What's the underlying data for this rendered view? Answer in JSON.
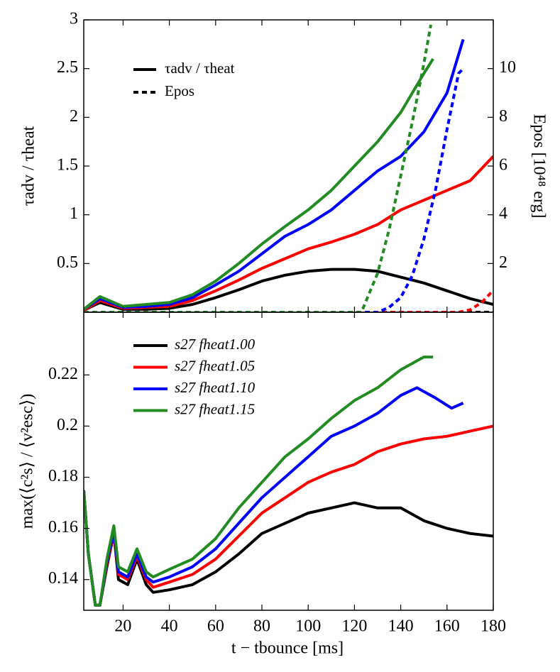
{
  "chart_data": [
    {
      "type": "line",
      "ylabel": "τadv / τheat",
      "y2label": "Epos [10⁴⁸ erg]",
      "xlim": [
        3,
        180
      ],
      "ylim": [
        0,
        3
      ],
      "yticks": [
        0.5,
        1,
        1.5,
        2,
        2.5,
        3
      ],
      "y2lim": [
        0,
        12
      ],
      "y2ticks": [
        2,
        4,
        6,
        8,
        10
      ],
      "legend": [
        {
          "label": "τadv / τheat",
          "dash": "solid"
        },
        {
          "label": "Epos",
          "dash": "dashed"
        }
      ],
      "series": [
        {
          "color": "#000000",
          "dash": "solid",
          "x": [
            3,
            10,
            20,
            30,
            40,
            50,
            60,
            70,
            80,
            90,
            100,
            110,
            120,
            130,
            140,
            150,
            160,
            170,
            180
          ],
          "values": [
            0.02,
            0.1,
            0.03,
            0.03,
            0.04,
            0.08,
            0.15,
            0.23,
            0.32,
            0.38,
            0.42,
            0.44,
            0.44,
            0.42,
            0.36,
            0.3,
            0.22,
            0.14,
            0.08
          ]
        },
        {
          "color": "#ff0000",
          "dash": "solid",
          "x": [
            3,
            10,
            20,
            30,
            40,
            50,
            60,
            70,
            80,
            90,
            100,
            110,
            120,
            130,
            140,
            150,
            160,
            170,
            180
          ],
          "values": [
            0.02,
            0.12,
            0.04,
            0.05,
            0.06,
            0.12,
            0.22,
            0.33,
            0.45,
            0.55,
            0.65,
            0.72,
            0.8,
            0.9,
            1.05,
            1.15,
            1.25,
            1.35,
            1.6
          ]
        },
        {
          "color": "#0000ff",
          "dash": "solid",
          "x": [
            3,
            10,
            20,
            30,
            40,
            50,
            60,
            70,
            80,
            90,
            100,
            110,
            120,
            130,
            140,
            150,
            160,
            167
          ],
          "values": [
            0.03,
            0.14,
            0.05,
            0.06,
            0.08,
            0.15,
            0.28,
            0.42,
            0.6,
            0.78,
            0.9,
            1.05,
            1.25,
            1.45,
            1.6,
            1.85,
            2.25,
            2.8
          ]
        },
        {
          "color": "#228b22",
          "dash": "solid",
          "x": [
            3,
            10,
            20,
            30,
            40,
            50,
            60,
            70,
            80,
            90,
            100,
            110,
            120,
            130,
            140,
            150,
            154
          ],
          "values": [
            0.03,
            0.16,
            0.06,
            0.08,
            0.1,
            0.18,
            0.32,
            0.5,
            0.7,
            0.88,
            1.05,
            1.25,
            1.5,
            1.75,
            2.05,
            2.45,
            2.6
          ]
        },
        {
          "color": "#000000",
          "dash": "dashed",
          "axis": "y2",
          "x": [
            3,
            180
          ],
          "values": [
            0,
            0
          ]
        },
        {
          "color": "#ff0000",
          "dash": "dashed",
          "axis": "y2",
          "x": [
            3,
            165,
            170,
            175,
            180
          ],
          "values": [
            0,
            0,
            0.1,
            0.4,
            0.9
          ]
        },
        {
          "color": "#0000ff",
          "dash": "dashed",
          "axis": "y2",
          "x": [
            3,
            130,
            135,
            140,
            145,
            150,
            155,
            160,
            165,
            167
          ],
          "values": [
            0,
            0,
            0.2,
            0.6,
            1.5,
            3,
            5,
            7.5,
            9.8,
            10
          ]
        },
        {
          "color": "#228b22",
          "dash": "dashed",
          "axis": "y2",
          "x": [
            3,
            123,
            130,
            135,
            140,
            145,
            150,
            153
          ],
          "values": [
            0,
            0,
            1.6,
            3.4,
            5.6,
            7.8,
            10.2,
            11.8
          ]
        }
      ]
    },
    {
      "type": "line",
      "xlabel": "t − tbounce [ms]",
      "ylabel": "max(⟨c²s⟩ / ⟨v²esc⟩)",
      "xlim": [
        3,
        180
      ],
      "xticks": [
        20,
        40,
        60,
        80,
        100,
        120,
        140,
        160,
        180
      ],
      "ylim": [
        0.128,
        0.2445
      ],
      "yticks": [
        0.14,
        0.16,
        0.18,
        0.2,
        0.22
      ],
      "series": [
        {
          "name": "s27 fheat1.00",
          "color": "#000000",
          "x": [
            3,
            5,
            8,
            10,
            13,
            16,
            18,
            22,
            26,
            30,
            33,
            40,
            50,
            60,
            70,
            80,
            90,
            100,
            110,
            120,
            130,
            140,
            150,
            160,
            170,
            180
          ],
          "values": [
            0.175,
            0.15,
            0.13,
            0.13,
            0.145,
            0.158,
            0.14,
            0.138,
            0.148,
            0.138,
            0.135,
            0.136,
            0.138,
            0.143,
            0.15,
            0.158,
            0.162,
            0.166,
            0.168,
            0.17,
            0.168,
            0.168,
            0.163,
            0.16,
            0.158,
            0.157
          ]
        },
        {
          "name": "s27 fheat1.05",
          "color": "#ff0000",
          "x": [
            3,
            5,
            8,
            10,
            13,
            16,
            18,
            22,
            26,
            30,
            33,
            40,
            50,
            60,
            70,
            80,
            90,
            100,
            110,
            120,
            130,
            140,
            150,
            160,
            170,
            180
          ],
          "values": [
            0.175,
            0.15,
            0.13,
            0.13,
            0.146,
            0.158,
            0.142,
            0.14,
            0.149,
            0.14,
            0.137,
            0.139,
            0.142,
            0.148,
            0.157,
            0.166,
            0.172,
            0.178,
            0.182,
            0.185,
            0.19,
            0.193,
            0.195,
            0.196,
            0.198,
            0.2
          ]
        },
        {
          "name": "s27 fheat1.10",
          "color": "#0000ff",
          "x": [
            3,
            5,
            8,
            10,
            13,
            16,
            18,
            22,
            26,
            30,
            33,
            40,
            50,
            60,
            70,
            80,
            90,
            100,
            110,
            120,
            130,
            140,
            147,
            155,
            162,
            167
          ],
          "values": [
            0.175,
            0.15,
            0.13,
            0.13,
            0.147,
            0.159,
            0.143,
            0.141,
            0.15,
            0.141,
            0.139,
            0.141,
            0.145,
            0.152,
            0.162,
            0.172,
            0.18,
            0.188,
            0.196,
            0.2,
            0.205,
            0.212,
            0.215,
            0.211,
            0.207,
            0.209
          ]
        },
        {
          "name": "s27 fheat1.15",
          "color": "#228b22",
          "x": [
            3,
            5,
            8,
            10,
            13,
            16,
            18,
            22,
            26,
            30,
            33,
            40,
            50,
            60,
            70,
            80,
            90,
            100,
            110,
            120,
            130,
            140,
            150,
            154
          ],
          "values": [
            0.175,
            0.15,
            0.13,
            0.13,
            0.148,
            0.161,
            0.145,
            0.143,
            0.152,
            0.143,
            0.141,
            0.144,
            0.148,
            0.156,
            0.168,
            0.178,
            0.188,
            0.195,
            0.203,
            0.21,
            0.215,
            0.222,
            0.227,
            0.227
          ]
        }
      ]
    }
  ]
}
